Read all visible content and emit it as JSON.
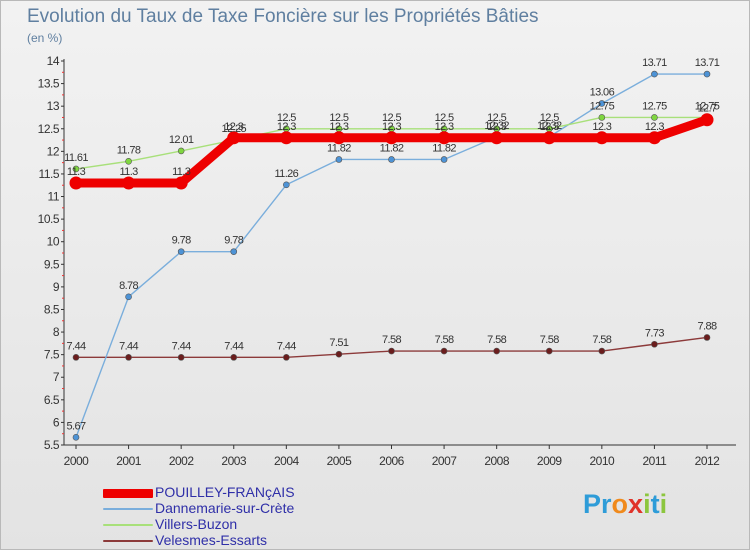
{
  "title": "Evolution du Taux de Taxe Foncière sur les Propriétés Bâties",
  "subtitle": "(en %)",
  "logo": {
    "letters": [
      {
        "ch": "P",
        "color": "#2e9cd8"
      },
      {
        "ch": "r",
        "color": "#2e9cd8"
      },
      {
        "ch": "o",
        "color": "#f08a1c"
      },
      {
        "ch": "x",
        "color": "#e0332a"
      },
      {
        "ch": "i",
        "color": "#8cc63e"
      },
      {
        "ch": "t",
        "color": "#2e9cd8"
      },
      {
        "ch": "i",
        "color": "#8cc63e"
      }
    ]
  },
  "chart_data": {
    "type": "line",
    "title": "Evolution du Taux de Taxe Foncière sur les Propriétés Bâties",
    "ylabel": "(en %)",
    "xlabel": "",
    "grid": false,
    "legend_position": "bottom-left",
    "ylim": [
      5.5,
      14
    ],
    "yticks": [
      "5.5",
      "6",
      "6.5",
      "7",
      "7.5",
      "8",
      "8.5",
      "9",
      "9.5",
      "10",
      "10.5",
      "11",
      "11.5",
      "12",
      "12.5",
      "13",
      "13.5",
      "14"
    ],
    "x": [
      "2000",
      "2001",
      "2002",
      "2003",
      "2004",
      "2005",
      "2006",
      "2007",
      "2008",
      "2009",
      "2010",
      "2011",
      "2012"
    ],
    "series": [
      {
        "name": "POUILLEY-FRANçAIS",
        "color": "#ee0000",
        "marker": "#ee0000",
        "values": [
          11.3,
          11.3,
          11.3,
          12.3,
          12.3,
          12.3,
          12.3,
          12.3,
          12.3,
          12.3,
          12.3,
          12.3,
          12.7
        ],
        "labels": [
          "11.3",
          "11.3",
          "11.3",
          "12.3",
          "12.3",
          "12.3",
          "12.3",
          "12.3",
          "12.3",
          "12.3",
          "12.3",
          "12.3",
          "12.7"
        ]
      },
      {
        "name": "Dannemarie-sur-Crète",
        "color": "#7aaedc",
        "marker": "#4d93d6",
        "values": [
          5.67,
          8.78,
          9.78,
          9.78,
          11.26,
          11.82,
          11.82,
          11.82,
          12.32,
          12.32,
          13.06,
          13.71,
          13.71
        ],
        "labels": [
          "5.67",
          "8.78",
          "9.78",
          "9.78",
          "11.26",
          "11.82",
          "11.82",
          "11.82",
          "12.32",
          "12.32",
          "13.06",
          "13.71",
          "13.71"
        ]
      },
      {
        "name": "Villers-Buzon",
        "color": "#a8e07a",
        "marker": "#7fd640",
        "values": [
          11.61,
          11.78,
          12.01,
          12.25,
          12.5,
          12.5,
          12.5,
          12.5,
          12.5,
          12.5,
          12.75,
          12.75,
          12.75
        ],
        "labels": [
          "11.61",
          "11.78",
          "12.01",
          "12.25",
          "12.5",
          "12.5",
          "12.5",
          "12.5",
          "12.5",
          "12.5",
          "12.75",
          "12.75",
          "12.75"
        ]
      },
      {
        "name": "Velesmes-Essarts",
        "color": "#8c3a3a",
        "marker": "#6b1d1d",
        "values": [
          7.44,
          7.44,
          7.44,
          7.44,
          7.44,
          7.51,
          7.58,
          7.58,
          7.58,
          7.58,
          7.58,
          7.73,
          7.88
        ],
        "labels": [
          "7.44",
          "7.44",
          "7.44",
          "7.44",
          "7.44",
          "7.51",
          "7.58",
          "7.58",
          "7.58",
          "7.58",
          "7.58",
          "7.73",
          "7.88"
        ]
      }
    ]
  }
}
